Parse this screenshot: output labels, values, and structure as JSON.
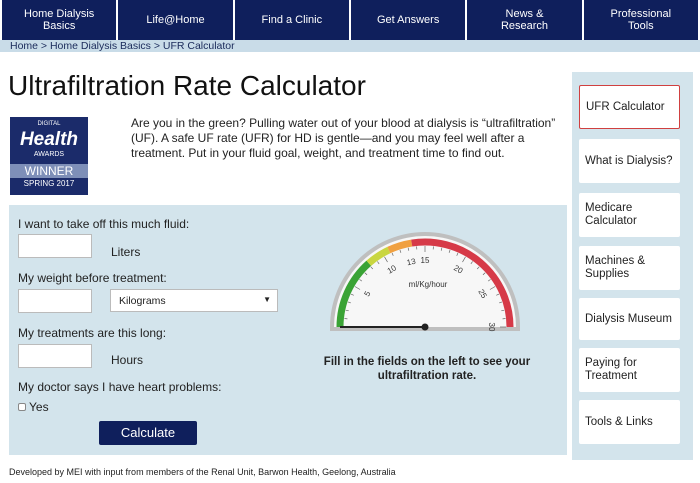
{
  "nav": [
    "Home Dialysis Basics",
    "Life@Home",
    "Find a Clinic",
    "Get Answers",
    "News & Research",
    "Professional Tools"
  ],
  "breadcrumb": "Home > Home Dialysis Basics > UFR Calculator",
  "title": "Ultrafiltration Rate Calculator",
  "award": {
    "top": "DIGITAL",
    "name": "Health",
    "sub": "AWARDS",
    "winner": "WINNER",
    "season": "SPRING 2017"
  },
  "intro": "Are you in the green?  Pulling water out of your blood at dialysis is “ultrafiltration” (UF).  A safe UF rate (UFR) for HD is gentle—and you may feel well after a treatment.  Put in your fluid goal, weight, and treatment time to find out.",
  "form": {
    "fluid_label": "I want to take off this much fluid:",
    "fluid_unit": "Liters",
    "weight_label": "My weight before treatment:",
    "weight_unit": "Kilograms",
    "time_label": "My treatments are this long:",
    "time_unit": "Hours",
    "heart_label": "My doctor says I have heart problems:",
    "heart_option": "Yes",
    "button": "Calculate"
  },
  "gauge": {
    "unit": "ml/Kg/hour",
    "min": 0,
    "max": 30,
    "ticks": [
      5,
      10,
      13,
      15,
      20,
      25,
      30
    ],
    "message": "Fill in the fields on the left to see your ultrafiltration rate."
  },
  "sidebar": [
    "UFR Calculator",
    "What is Dialysis?",
    "Medicare Calculator",
    "Machines & Supplies",
    "Dialysis Museum",
    "Paying for Treatment",
    "Tools & Links"
  ],
  "footer": "Developed by MEI with input from members of the Renal Unit, Barwon Health, Geelong, Australia"
}
